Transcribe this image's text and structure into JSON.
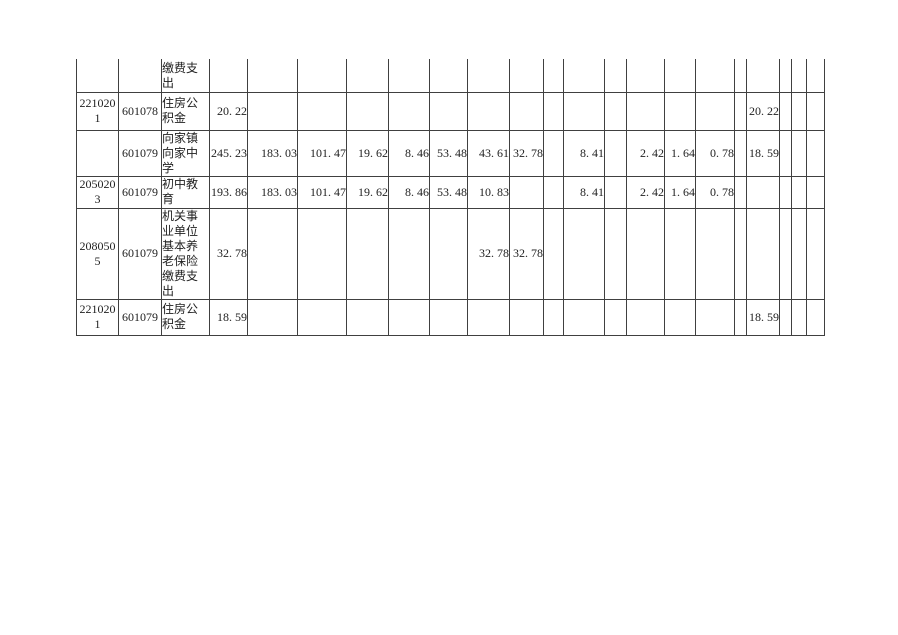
{
  "page": {
    "background_color": "#ffffff",
    "table_border_color": "#404040"
  },
  "table": {
    "description_visible_content_only": "fragment of budget expenditure grid continued from previous page",
    "column_count": 22,
    "rows": [
      {
        "cells": [
          "",
          "",
          "缴费支出",
          "",
          "",
          "",
          "",
          "",
          "",
          "",
          "",
          "",
          "",
          "",
          "",
          "",
          "",
          "",
          "",
          "",
          "",
          ""
        ]
      },
      {
        "cells": [
          "2210201",
          "601078",
          "住房公积金",
          "20. 22",
          "",
          "",
          "",
          "",
          "",
          "",
          "",
          "",
          "",
          "",
          "",
          "",
          "",
          "",
          "20. 22",
          "",
          "",
          ""
        ]
      },
      {
        "cells": [
          "",
          "601079",
          "向家镇向家中学",
          "245. 23",
          "183. 03",
          "101. 47",
          "19. 62",
          "8. 46",
          "53. 48",
          "43. 61",
          "32. 78",
          "",
          "8. 41",
          "",
          "2. 42",
          "1. 64",
          "0. 78",
          "",
          "18. 59",
          "",
          "",
          ""
        ]
      },
      {
        "cells": [
          "2050203",
          "601079",
          "初中教育",
          "193. 86",
          "183. 03",
          "101. 47",
          "19. 62",
          "8. 46",
          "53. 48",
          "10. 83",
          "",
          "",
          "8. 41",
          "",
          "2. 42",
          "1. 64",
          "0. 78",
          "",
          "",
          "",
          "",
          ""
        ]
      },
      {
        "cells": [
          "2080505",
          "601079",
          "机关事业单位基本养老保险缴费支出",
          "32. 78",
          "",
          "",
          "",
          "",
          "",
          "32. 78",
          "32. 78",
          "",
          "",
          "",
          "",
          "",
          "",
          "",
          "",
          "",
          "",
          ""
        ]
      },
      {
        "cells": [
          "2210201",
          "601079",
          "住房公积金",
          "18. 59",
          "",
          "",
          "",
          "",
          "",
          "",
          "",
          "",
          "",
          "",
          "",
          "",
          "",
          "",
          "18. 59",
          "",
          "",
          ""
        ]
      }
    ]
  }
}
